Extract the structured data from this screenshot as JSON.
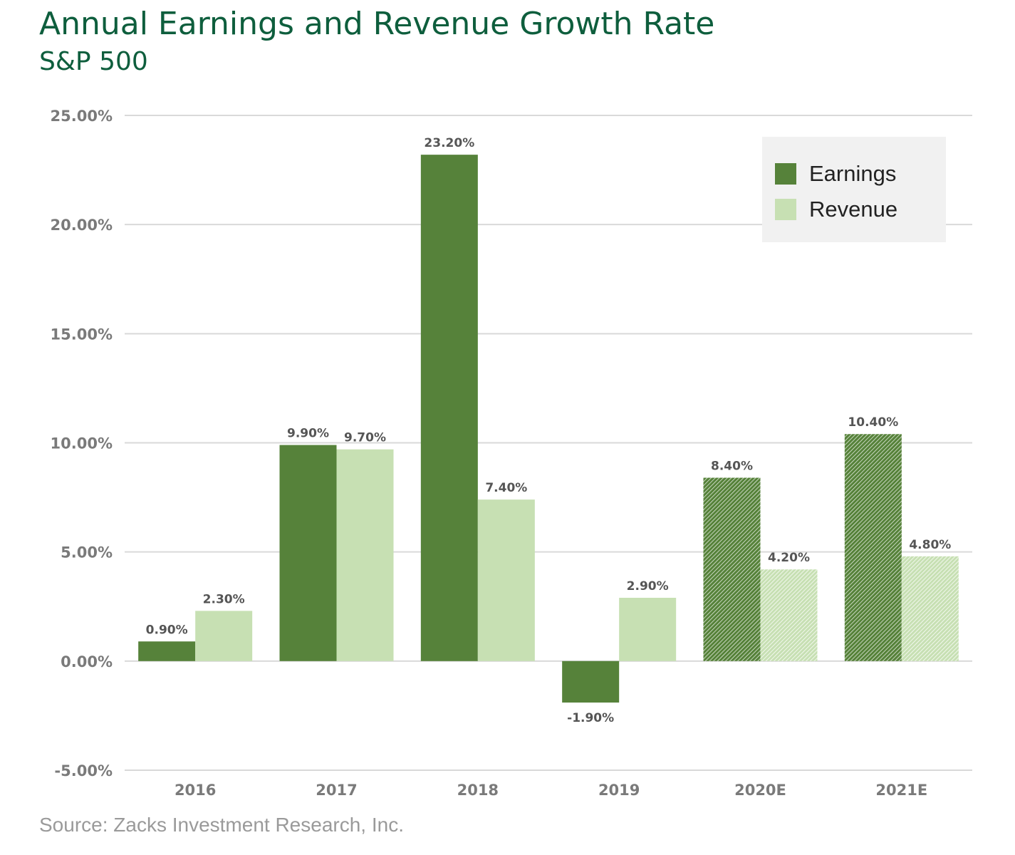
{
  "title": "Annual Earnings and Revenue Growth Rate",
  "subtitle": "S&P 500",
  "source": "Source:  Zacks Investment Research, Inc.",
  "colors": {
    "title": "#0e5e3d",
    "earnings": "#56823a",
    "revenue": "#c7e0b3",
    "grid": "#d9d9d9",
    "axis_text": "#7a7a7a",
    "label_text": "#555555"
  },
  "legend": {
    "placement": "top-right",
    "items": [
      {
        "label": "Earnings",
        "color": "#56823a"
      },
      {
        "label": "Revenue",
        "color": "#c7e0b3"
      }
    ]
  },
  "chart_data": {
    "type": "bar",
    "categories": [
      "2016",
      "2017",
      "2018",
      "2019",
      "2020E",
      "2021E"
    ],
    "estimated_categories": [
      "2020E",
      "2021E"
    ],
    "series": [
      {
        "name": "Earnings",
        "values": [
          0.9,
          9.9,
          23.2,
          -1.9,
          8.4,
          10.4
        ],
        "labels": [
          "0.90%",
          "9.90%",
          "23.20%",
          "-1.90%",
          "8.40%",
          "10.40%"
        ]
      },
      {
        "name": "Revenue",
        "values": [
          2.3,
          9.7,
          7.4,
          2.9,
          4.2,
          4.8
        ],
        "labels": [
          "2.30%",
          "9.70%",
          "7.40%",
          "2.90%",
          "4.20%",
          "4.80%"
        ]
      }
    ],
    "ylim": [
      -5,
      25
    ],
    "yticks": [
      25,
      20,
      15,
      10,
      5,
      0,
      -5
    ],
    "ytick_labels": [
      "25.00%",
      "20.00%",
      "15.00%",
      "10.00%",
      "5.00%",
      "0.00%",
      "-5.00%"
    ],
    "grid": true,
    "xlabel": "",
    "ylabel": ""
  }
}
